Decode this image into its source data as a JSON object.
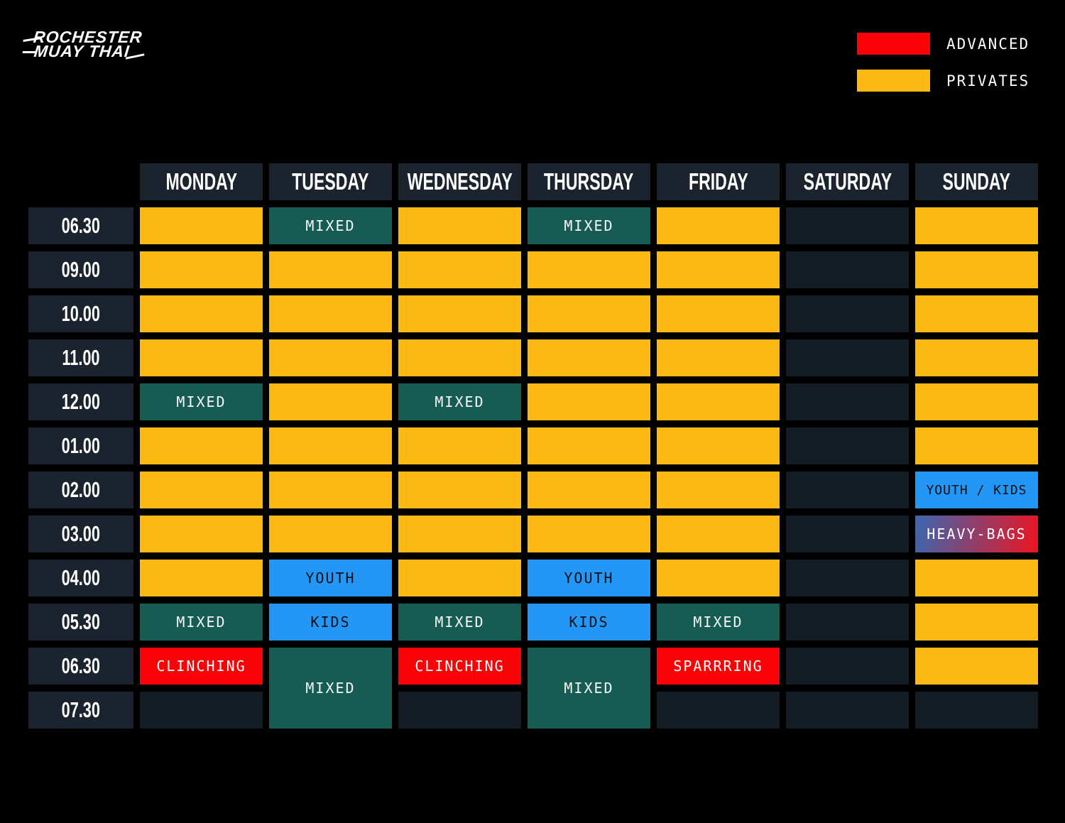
{
  "logo": {
    "line1": "ROCHESTER",
    "line2": "MUAY THAI"
  },
  "legend": {
    "items": [
      {
        "name": "advanced",
        "label": "ADVANCED",
        "color": "#FB0207"
      },
      {
        "name": "privates",
        "label": "PRIVATES",
        "color": "#FCB813"
      }
    ]
  },
  "colors": {
    "background": "#000000",
    "header_box": "#1B232E",
    "empty_cell": "#141C26",
    "privates": "#FCB813",
    "mixed": "#175C52",
    "youth": "#2496F5",
    "advanced": "#FB0207",
    "heavy_bags_gradient": [
      "#3A67B0",
      "#ED1420"
    ],
    "text_light": "#FFFFFF",
    "text_dark": "#0B1016"
  },
  "schedule": {
    "days": [
      "MONDAY",
      "TUESDAY",
      "WEDNESDAY",
      "THURSDAY",
      "FRIDAY",
      "SATURDAY",
      "SUNDAY"
    ],
    "rows": [
      {
        "time": "06.30",
        "cells": [
          {
            "type": "privates"
          },
          {
            "type": "mixed",
            "label": "MIXED"
          },
          {
            "type": "privates"
          },
          {
            "type": "mixed",
            "label": "MIXED"
          },
          {
            "type": "privates"
          },
          {
            "type": "empty"
          },
          {
            "type": "privates"
          }
        ]
      },
      {
        "time": "09.00",
        "cells": [
          {
            "type": "privates"
          },
          {
            "type": "privates"
          },
          {
            "type": "privates"
          },
          {
            "type": "privates"
          },
          {
            "type": "privates"
          },
          {
            "type": "empty"
          },
          {
            "type": "privates"
          }
        ]
      },
      {
        "time": "10.00",
        "cells": [
          {
            "type": "privates"
          },
          {
            "type": "privates"
          },
          {
            "type": "privates"
          },
          {
            "type": "privates"
          },
          {
            "type": "privates"
          },
          {
            "type": "empty"
          },
          {
            "type": "privates"
          }
        ]
      },
      {
        "time": "11.00",
        "cells": [
          {
            "type": "privates"
          },
          {
            "type": "privates"
          },
          {
            "type": "privates"
          },
          {
            "type": "privates"
          },
          {
            "type": "privates"
          },
          {
            "type": "empty"
          },
          {
            "type": "privates"
          }
        ]
      },
      {
        "time": "12.00",
        "cells": [
          {
            "type": "mixed",
            "label": "MIXED"
          },
          {
            "type": "privates"
          },
          {
            "type": "mixed",
            "label": "MIXED"
          },
          {
            "type": "privates"
          },
          {
            "type": "privates"
          },
          {
            "type": "empty"
          },
          {
            "type": "privates"
          }
        ]
      },
      {
        "time": "01.00",
        "cells": [
          {
            "type": "privates"
          },
          {
            "type": "privates"
          },
          {
            "type": "privates"
          },
          {
            "type": "privates"
          },
          {
            "type": "privates"
          },
          {
            "type": "empty"
          },
          {
            "type": "privates"
          }
        ]
      },
      {
        "time": "02.00",
        "cells": [
          {
            "type": "privates"
          },
          {
            "type": "privates"
          },
          {
            "type": "privates"
          },
          {
            "type": "privates"
          },
          {
            "type": "privates"
          },
          {
            "type": "empty"
          },
          {
            "type": "youth",
            "label": "YOUTH / KIDS",
            "small": true
          }
        ]
      },
      {
        "time": "03.00",
        "cells": [
          {
            "type": "privates"
          },
          {
            "type": "privates"
          },
          {
            "type": "privates"
          },
          {
            "type": "privates"
          },
          {
            "type": "privates"
          },
          {
            "type": "empty"
          },
          {
            "type": "heavy-bags",
            "label": "HEAVY-BAGS"
          }
        ]
      },
      {
        "time": "04.00",
        "cells": [
          {
            "type": "privates"
          },
          {
            "type": "youth",
            "label": "YOUTH"
          },
          {
            "type": "privates"
          },
          {
            "type": "youth",
            "label": "YOUTH"
          },
          {
            "type": "privates"
          },
          {
            "type": "empty"
          },
          {
            "type": "privates"
          }
        ]
      },
      {
        "time": "05.30",
        "cells": [
          {
            "type": "mixed",
            "label": "MIXED"
          },
          {
            "type": "youth",
            "label": "KIDS"
          },
          {
            "type": "mixed",
            "label": "MIXED"
          },
          {
            "type": "youth",
            "label": "KIDS"
          },
          {
            "type": "mixed",
            "label": "MIXED"
          },
          {
            "type": "empty"
          },
          {
            "type": "privates"
          }
        ]
      },
      {
        "time": "06.30",
        "cells": [
          {
            "type": "advanced",
            "label": "CLINCHING"
          },
          {
            "type": "mixed",
            "label": "MIXED",
            "span": 2
          },
          {
            "type": "advanced",
            "label": "CLINCHING"
          },
          {
            "type": "mixed",
            "label": "MIXED",
            "span": 2
          },
          {
            "type": "advanced",
            "label": "SPARRRING"
          },
          {
            "type": "empty"
          },
          {
            "type": "privates"
          }
        ]
      },
      {
        "time": "07.30",
        "cells": [
          {
            "type": "empty"
          },
          {
            "type": "skip"
          },
          {
            "type": "empty"
          },
          {
            "type": "skip"
          },
          {
            "type": "empty"
          },
          {
            "type": "empty"
          },
          {
            "type": "empty"
          }
        ]
      }
    ]
  }
}
